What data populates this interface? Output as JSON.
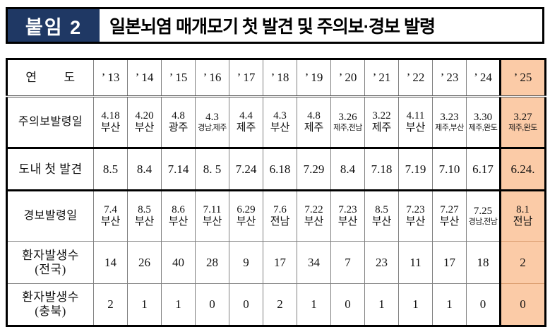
{
  "colors": {
    "badge_background": "#1f3864",
    "highlight_column": "#fbcba7",
    "grid_line": "#808080"
  },
  "header": {
    "badge": "붙임 2",
    "title": "일본뇌염 매개모기 첫 발견 및 주의보·경보 발령"
  },
  "table": {
    "rows": {
      "year": {
        "label": "연        도",
        "values": [
          "’ 13",
          "’ 14",
          "’ 15",
          "’ 16",
          "’ 17",
          "’ 18",
          "’ 19",
          "’ 20",
          "’ 21",
          "’ 22",
          "’ 23",
          "’ 24",
          "’ 25"
        ]
      },
      "advisory": {
        "label": "주의보발령일",
        "values": [
          {
            "date": "4.18",
            "region": "부산"
          },
          {
            "date": "4.20",
            "region": "부산"
          },
          {
            "date": "4.8",
            "region": "광주"
          },
          {
            "date": "4.3",
            "region": "경남,제주"
          },
          {
            "date": "4.4",
            "region": "제주"
          },
          {
            "date": "4.3",
            "region": "부산"
          },
          {
            "date": "4.8",
            "region": "제주"
          },
          {
            "date": "3.26",
            "region": "제주,전남"
          },
          {
            "date": "3.22",
            "region": "제주"
          },
          {
            "date": "4.11",
            "region": "부산"
          },
          {
            "date": "3.23",
            "region": "제주,부산"
          },
          {
            "date": "3.30",
            "region": "제주,완도"
          },
          {
            "date": "3.27",
            "region": "제주,완도"
          }
        ]
      },
      "first_detection": {
        "label": "도내 첫 발견",
        "values": [
          "8.5",
          "8.4",
          "7.14",
          "8. 5",
          "7.24",
          "6.18",
          "7.29",
          "8.4",
          "7.18",
          "7.19",
          "7.10",
          "6.17",
          "6.24."
        ]
      },
      "warning": {
        "label": "경보발령일",
        "values": [
          {
            "date": "7.4",
            "region": "부산"
          },
          {
            "date": "8.5",
            "region": "부산"
          },
          {
            "date": "8.6",
            "region": "부산"
          },
          {
            "date": "7.11",
            "region": "부산"
          },
          {
            "date": "6.29",
            "region": "부산"
          },
          {
            "date": "7.6",
            "region": "전남"
          },
          {
            "date": "7.22",
            "region": "부산"
          },
          {
            "date": "7.23",
            "region": "부산"
          },
          {
            "date": "8.5",
            "region": "부산"
          },
          {
            "date": "7.23",
            "region": "부산"
          },
          {
            "date": "7.27",
            "region": "부산"
          },
          {
            "date": "7.25",
            "region": "경남,전남"
          },
          {
            "date": "8.1",
            "region": "전남"
          }
        ]
      },
      "patients_national": {
        "label": "환자발생수",
        "sublabel": "(전국)",
        "values": [
          "14",
          "26",
          "40",
          "28",
          "9",
          "17",
          "34",
          "7",
          "23",
          "11",
          "17",
          "18",
          "2"
        ]
      },
      "patients_chungbuk": {
        "label": "환자발생수",
        "sublabel": "(충북)",
        "values": [
          "2",
          "1",
          "1",
          "0",
          "0",
          "2",
          "1",
          "0",
          "1",
          "1",
          "1",
          "0",
          "0"
        ]
      }
    }
  }
}
